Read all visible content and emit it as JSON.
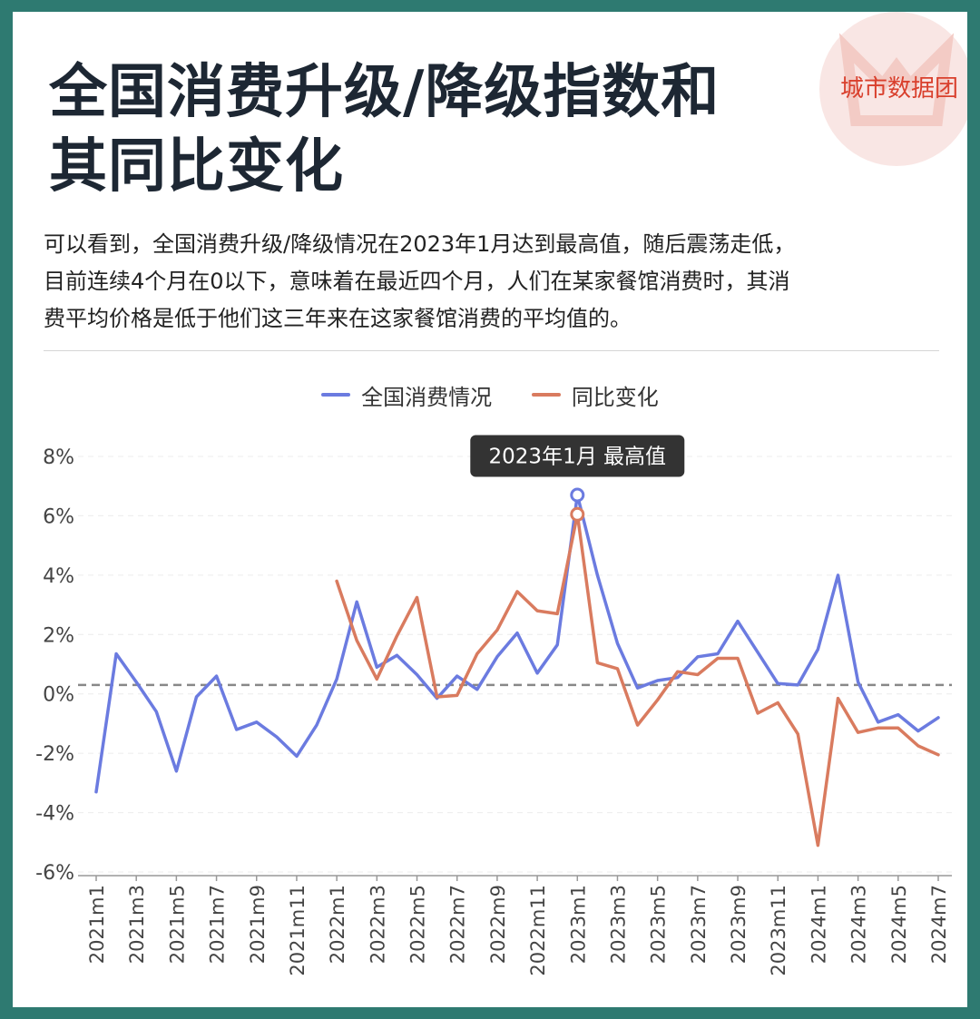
{
  "title_line1": "全国消费升级/降级指数和",
  "title_line2": "其同比变化",
  "logo_text": "城市数据团",
  "description_line1": "可以看到，全国消费升级/降级情况在2023年1月达到最高值，随后震荡走低，",
  "description_line2": "目前连续4个月在0以下，意味着在最近四个月，人们在某家餐馆消费时，其消",
  "description_line3": "费平均价格是低于他们这三年来在这家餐馆消费的平均值的。",
  "colors": {
    "series1": "#6b7be0",
    "series2": "#d97b5f",
    "tooltip_bg": "#333333",
    "logo": "#d9402d",
    "frame": "#2e7a71"
  },
  "chart_data": {
    "type": "line",
    "x": [
      "2021m1",
      "2021m2",
      "2021m3",
      "2021m4",
      "2021m5",
      "2021m6",
      "2021m7",
      "2021m8",
      "2021m9",
      "2021m10",
      "2021m11",
      "2021m12",
      "2022m1",
      "2022m2",
      "2022m3",
      "2022m4",
      "2022m5",
      "2022m6",
      "2022m7",
      "2022m8",
      "2022m9",
      "2022m10",
      "2022m11",
      "2022m12",
      "2023m1",
      "2023m2",
      "2023m3",
      "2023m4",
      "2023m5",
      "2023m6",
      "2023m7",
      "2023m8",
      "2023m9",
      "2023m10",
      "2023m11",
      "2023m12",
      "2024m1",
      "2024m2",
      "2024m3",
      "2024m4",
      "2024m5",
      "2024m6",
      "2024m7"
    ],
    "x_tick_labels": [
      "2021m1",
      "2021m3",
      "2021m5",
      "2021m7",
      "2021m9",
      "2021m11",
      "2022m1",
      "2022m3",
      "2022m5",
      "2022m7",
      "2022m9",
      "2022m11",
      "2023m1",
      "2023m3",
      "2023m5",
      "2023m7",
      "2023m9",
      "2023m11",
      "2024m1",
      "2024m3",
      "2024m5",
      "2024m7"
    ],
    "series": [
      {
        "name": "全国消费情况",
        "values": [
          -3.3,
          1.35,
          0.4,
          -0.6,
          -2.6,
          -0.1,
          0.6,
          -1.2,
          -0.95,
          -1.45,
          -2.1,
          -1.05,
          0.5,
          3.1,
          0.9,
          1.3,
          0.65,
          -0.15,
          0.6,
          0.15,
          1.25,
          2.05,
          0.7,
          1.65,
          6.7,
          4.0,
          1.7,
          0.2,
          0.45,
          0.55,
          1.25,
          1.35,
          2.45,
          1.4,
          0.35,
          0.3,
          1.5,
          4.0,
          0.4,
          -0.95,
          -0.7,
          -1.25,
          -0.8
        ]
      },
      {
        "name": "同比变化",
        "values": [
          null,
          null,
          null,
          null,
          null,
          null,
          null,
          null,
          null,
          null,
          null,
          null,
          3.8,
          1.8,
          0.5,
          1.95,
          3.25,
          -0.1,
          -0.05,
          1.35,
          2.15,
          3.45,
          2.8,
          2.7,
          6.05,
          1.05,
          0.85,
          -1.05,
          -0.2,
          0.75,
          0.65,
          1.2,
          1.2,
          -0.65,
          -0.3,
          -1.35,
          -5.1,
          -0.15,
          -1.3,
          -1.15,
          -1.15,
          -1.75,
          -2.05
        ]
      }
    ],
    "y_ticks": [
      "8%",
      "6%",
      "4%",
      "2%",
      "0%",
      "-2%",
      "-4%",
      "-6%"
    ],
    "ylim": [
      -6,
      8
    ],
    "reference_line": 0.3,
    "tooltip": {
      "x": "2023m1",
      "text": "2023年1月  最高值"
    },
    "legend_position": "top",
    "grid": true
  }
}
